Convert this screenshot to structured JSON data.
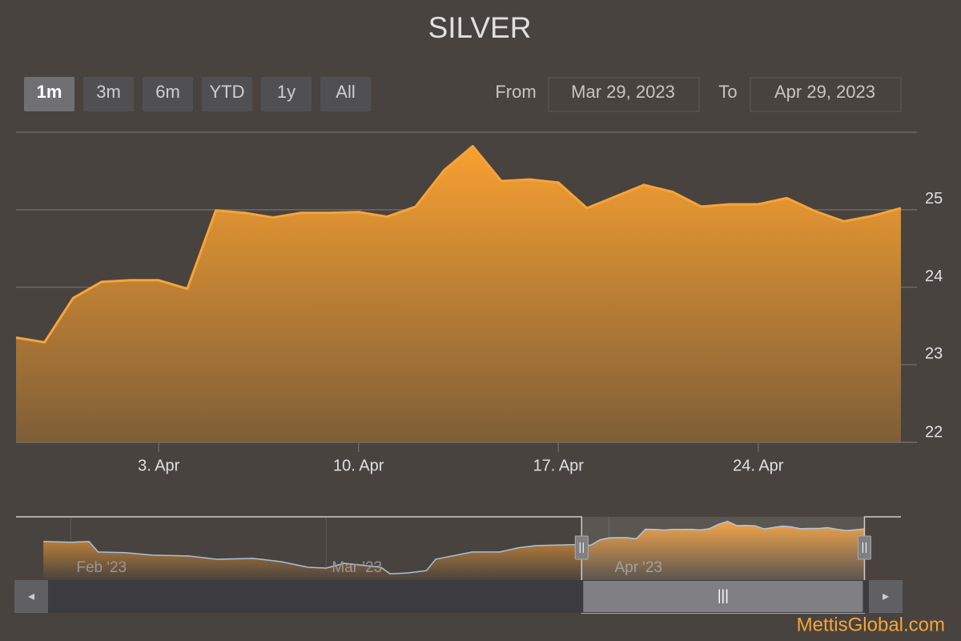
{
  "title": "SILVER",
  "range_selector": {
    "buttons": [
      "1m",
      "3m",
      "6m",
      "YTD",
      "1y",
      "All"
    ],
    "selected": 0,
    "from_label": "From",
    "from": "Mar 29, 2023",
    "to_label": "To",
    "to": "Apr 29, 2023"
  },
  "chart_data": {
    "type": "area",
    "color": "#f7a437",
    "grid": true,
    "x": [
      "2023-03-29",
      "2023-03-30",
      "2023-03-31",
      "2023-04-01",
      "2023-04-02",
      "2023-04-03",
      "2023-04-04",
      "2023-04-05",
      "2023-04-06",
      "2023-04-07",
      "2023-04-08",
      "2023-04-09",
      "2023-04-10",
      "2023-04-11",
      "2023-04-12",
      "2023-04-13",
      "2023-04-14",
      "2023-04-15",
      "2023-04-16",
      "2023-04-17",
      "2023-04-18",
      "2023-04-19",
      "2023-04-20",
      "2023-04-21",
      "2023-04-22",
      "2023-04-23",
      "2023-04-24",
      "2023-04-25",
      "2023-04-26",
      "2023-04-27",
      "2023-04-28",
      "2023-04-29"
    ],
    "values": [
      23.35,
      23.29,
      23.86,
      24.07,
      24.09,
      24.09,
      23.98,
      24.99,
      24.96,
      24.9,
      24.96,
      24.96,
      24.97,
      24.91,
      25.04,
      25.51,
      25.82,
      25.37,
      25.39,
      25.35,
      25.02,
      25.17,
      25.32,
      25.23,
      25.04,
      25.07,
      25.07,
      25.15,
      24.98,
      24.85,
      24.92,
      25.02
    ],
    "xlim": [
      "2023-03-29",
      "2023-04-29"
    ],
    "ylim": [
      22,
      26
    ],
    "xticks": [
      {
        "value": "2023-04-03",
        "label": "3. Apr"
      },
      {
        "value": "2023-04-10",
        "label": "10. Apr"
      },
      {
        "value": "2023-04-17",
        "label": "17. Apr"
      },
      {
        "value": "2023-04-24",
        "label": "24. Apr"
      }
    ],
    "yticks": [
      22,
      23,
      24,
      25
    ]
  },
  "navigator": {
    "type": "area",
    "color": "#a9c0dc",
    "x": [
      "2023-01-29",
      "2023-02-01",
      "2023-02-03",
      "2023-02-04",
      "2023-02-07",
      "2023-02-10",
      "2023-02-14",
      "2023-02-17",
      "2023-02-21",
      "2023-02-24",
      "2023-02-27",
      "2023-03-01",
      "2023-03-03",
      "2023-03-07",
      "2023-03-08",
      "2023-03-10",
      "2023-03-12",
      "2023-03-13",
      "2023-03-17",
      "2023-03-20",
      "2023-03-22",
      "2023-03-24",
      "2023-03-28"
    ],
    "values": [
      23.69,
      23.61,
      23.69,
      22.58,
      22.5,
      22.24,
      22.15,
      21.81,
      21.9,
      21.56,
      20.96,
      20.87,
      21.38,
      20.96,
      20.27,
      20.36,
      20.61,
      21.81,
      22.58,
      22.58,
      23.01,
      23.26,
      23.35
    ],
    "xlim": [
      "2023-01-26",
      "2023-05-03"
    ],
    "ylim": [
      19.6,
      26.3
    ],
    "xticks": [
      {
        "value": "2023-02-01",
        "label": "Feb '23"
      },
      {
        "value": "2023-03-01",
        "label": "Mar '23"
      },
      {
        "value": "2023-04-01",
        "label": "Apr '23"
      }
    ]
  },
  "credits": "MettisGlobal.com"
}
